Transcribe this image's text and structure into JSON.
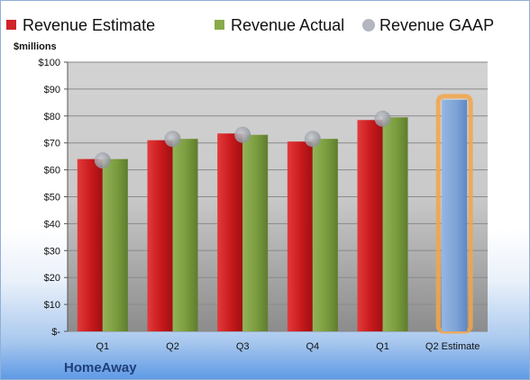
{
  "chart_data": {
    "type": "bar",
    "title": "",
    "company": "HomeAway",
    "ylabel": "$millions",
    "xlabel": "",
    "ylim": [
      0,
      100
    ],
    "yticks": [
      0,
      10,
      20,
      30,
      40,
      50,
      60,
      70,
      80,
      90,
      100
    ],
    "ytick_labels": [
      "$-",
      "$10",
      "$20",
      "$30",
      "$40",
      "$50",
      "$60",
      "$70",
      "$80",
      "$90",
      "$100"
    ],
    "categories": [
      "Q1",
      "Q2",
      "Q3",
      "Q4",
      "Q1",
      "Q2 Estimate"
    ],
    "series": [
      {
        "name": "Revenue Estimate",
        "type": "bar",
        "color": "#c8191c",
        "values": [
          64,
          71,
          73.5,
          70.5,
          78.5,
          null
        ]
      },
      {
        "name": "Revenue Actual",
        "type": "bar",
        "color": "#7a9c3e",
        "values": [
          64,
          71.5,
          73,
          71.5,
          79.5,
          null
        ]
      },
      {
        "name": "Revenue GAAP",
        "type": "marker",
        "color": "#a9abb3",
        "values": [
          63.5,
          71.5,
          73,
          71.5,
          79,
          null
        ]
      }
    ],
    "estimate_bar": {
      "category": "Q2 Estimate",
      "value": 86,
      "color": "#7ba2d6",
      "highlight": "#f3a54a"
    },
    "grid": true,
    "legend": "top"
  }
}
